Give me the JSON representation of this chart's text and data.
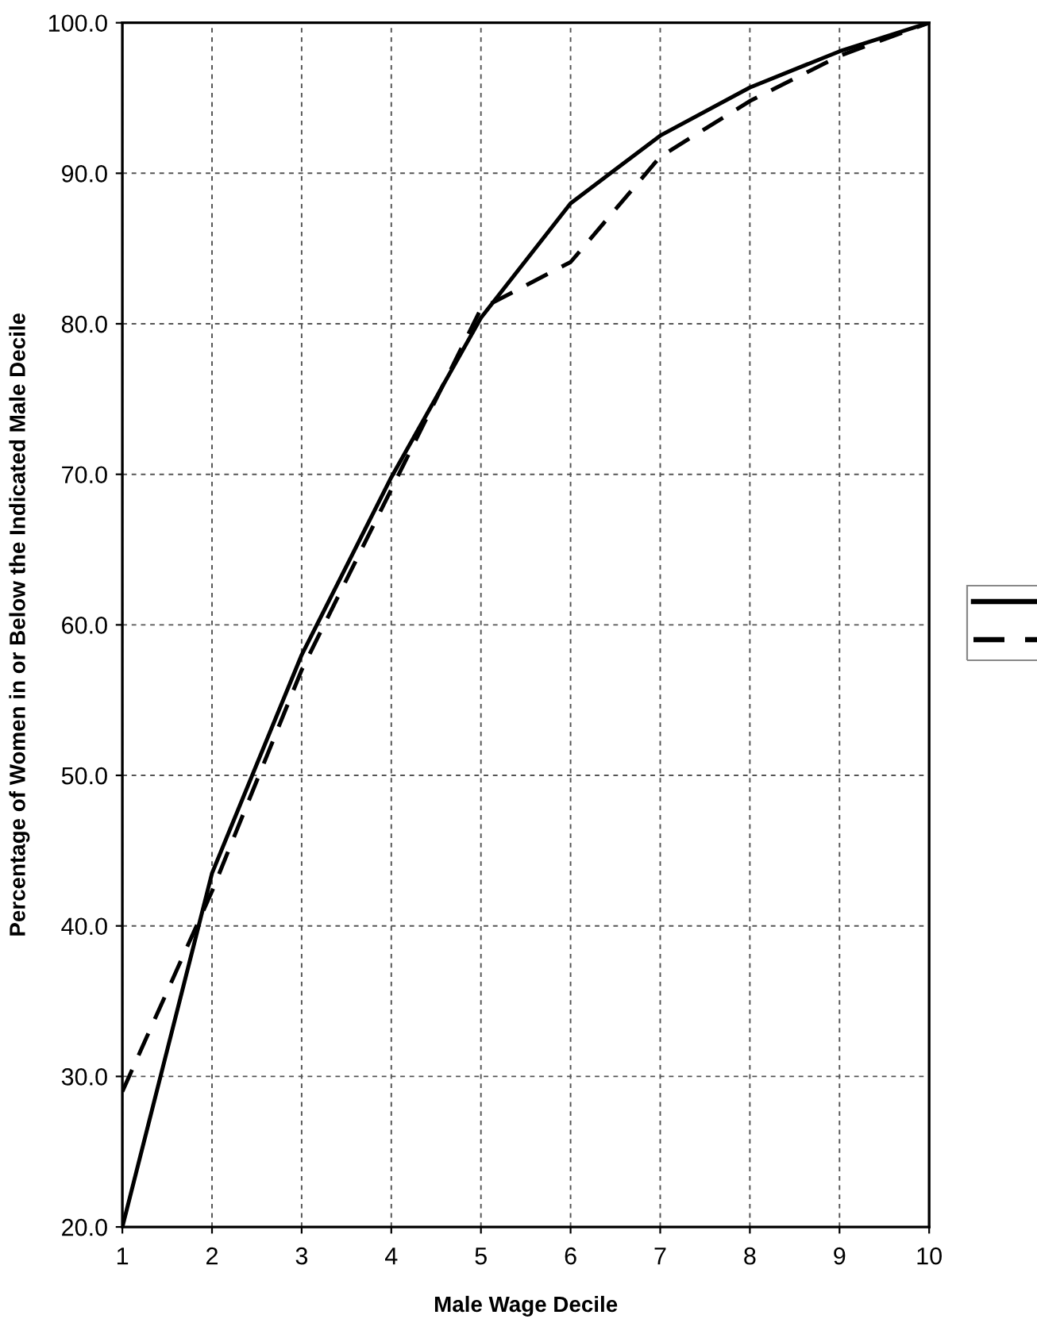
{
  "chart_data": {
    "type": "line",
    "xlabel": "Male Wage Decile",
    "ylabel": "Percentage of Women in or Below the Indicated Male Decile",
    "x": [
      1,
      2,
      3,
      4,
      5,
      6,
      7,
      8,
      9,
      10
    ],
    "series": [
      {
        "color": "#000000",
        "line_style": "solid",
        "values": [
          20.0,
          43.5,
          58.0,
          69.8,
          80.4,
          88.0,
          92.5,
          95.7,
          98.1,
          100.0
        ]
      },
      {
        "color": "#000000",
        "line_style": "dashed",
        "values": [
          29.0,
          42.3,
          57.0,
          69.0,
          81.0,
          84.1,
          91.1,
          94.8,
          97.8,
          100.0
        ]
      }
    ],
    "xlim": [
      1,
      10
    ],
    "ylim": [
      20,
      100
    ],
    "xticks": [
      1,
      2,
      3,
      4,
      5,
      6,
      7,
      8,
      9,
      10
    ],
    "yticks": [
      {
        "value": 20,
        "label": "20.0"
      },
      {
        "value": 30,
        "label": "30.0"
      },
      {
        "value": 40,
        "label": "40.0"
      },
      {
        "value": 50,
        "label": "50.0"
      },
      {
        "value": 60,
        "label": "60.0"
      },
      {
        "value": 70,
        "label": "70.0"
      },
      {
        "value": 80,
        "label": "80.0"
      },
      {
        "value": 90,
        "label": "90.0"
      },
      {
        "value": 100,
        "label": "100.0"
      }
    ],
    "grid": true,
    "marker": "none"
  }
}
